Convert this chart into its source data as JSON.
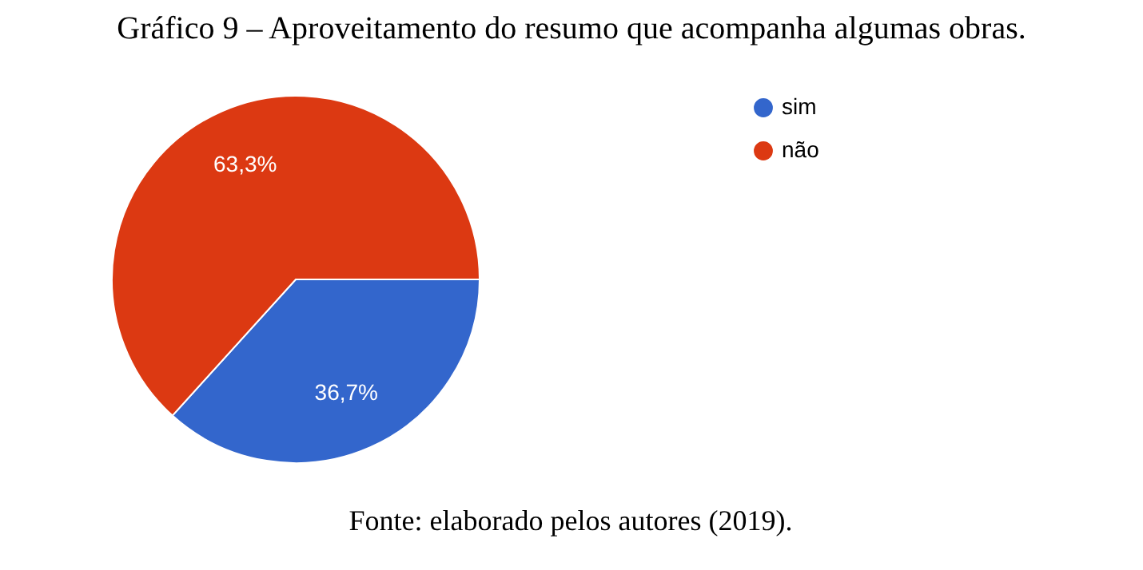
{
  "chart_data": {
    "type": "pie",
    "title": "Gráfico 9 – Aproveitamento do resumo que acompanha algumas obras.",
    "categories": [
      "sim",
      "não"
    ],
    "values": [
      36.7,
      63.3
    ],
    "colors": [
      "#3366cc",
      "#dc3912"
    ],
    "value_labels": [
      "36,7%",
      "63,3%"
    ],
    "legend": "top right",
    "annotations": [
      "Fonte: elaborado pelos autores (2019)."
    ]
  }
}
